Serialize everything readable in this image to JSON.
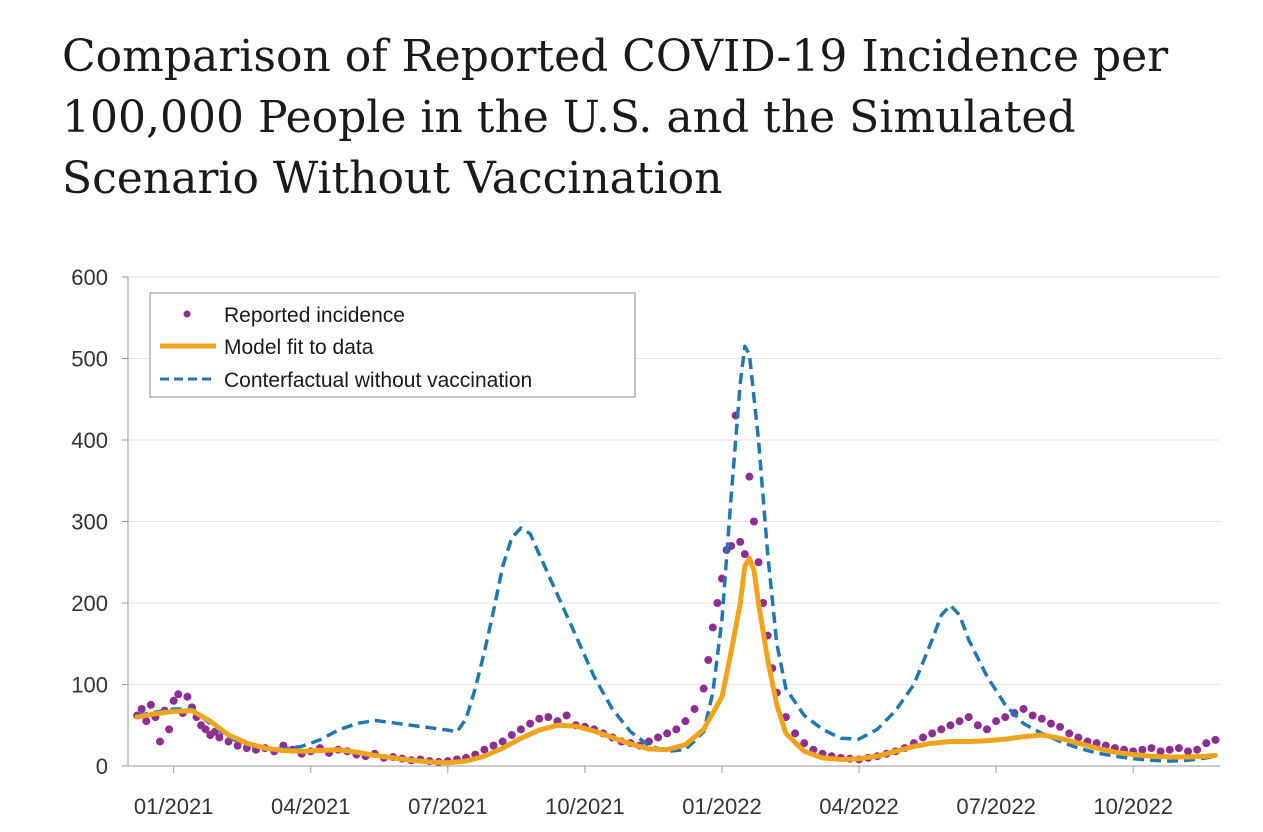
{
  "title_lines": [
    "Comparison of Reported COVID-19 Incidence per",
    "100,000 People in the U.S. and the Simulated",
    "Scenario Without Vaccination"
  ],
  "colors": {
    "reported": "#8e2e94",
    "model": "#f2a31c",
    "counterfactual": "#1f78b4",
    "grid": "#e6e6e6",
    "axis": "#999999"
  },
  "chart_data": {
    "type": "line",
    "title": "Comparison of Reported COVID-19 Incidence per 100,000 People in the U.S. and the Simulated Scenario Without Vaccination",
    "xlabel": "",
    "ylabel": "",
    "x_unit": "months since 01/2021",
    "xlim": [
      -1.0,
      22.9
    ],
    "ylim": [
      0,
      600
    ],
    "y_ticks": [
      0,
      100,
      200,
      300,
      400,
      500,
      600
    ],
    "x_ticks": [
      {
        "value": 0,
        "label": "01/2021"
      },
      {
        "value": 3,
        "label": "04/2021"
      },
      {
        "value": 6,
        "label": "07/2021"
      },
      {
        "value": 9,
        "label": "10/2021"
      },
      {
        "value": 12,
        "label": "01/2022"
      },
      {
        "value": 15,
        "label": "04/2022"
      },
      {
        "value": 18,
        "label": "07/2022"
      },
      {
        "value": 21,
        "label": "10/2022"
      }
    ],
    "grid": true,
    "legend_position": "top-left",
    "series": [
      {
        "name": "Reported incidence",
        "style": "dots",
        "points": [
          [
            -0.8,
            62
          ],
          [
            -0.7,
            70
          ],
          [
            -0.6,
            55
          ],
          [
            -0.5,
            75
          ],
          [
            -0.4,
            60
          ],
          [
            -0.3,
            30
          ],
          [
            -0.2,
            68
          ],
          [
            -0.1,
            45
          ],
          [
            0.0,
            80
          ],
          [
            0.1,
            88
          ],
          [
            0.2,
            65
          ],
          [
            0.3,
            85
          ],
          [
            0.4,
            72
          ],
          [
            0.5,
            60
          ],
          [
            0.6,
            50
          ],
          [
            0.7,
            45
          ],
          [
            0.8,
            38
          ],
          [
            0.9,
            42
          ],
          [
            1.0,
            35
          ],
          [
            1.2,
            30
          ],
          [
            1.4,
            25
          ],
          [
            1.6,
            22
          ],
          [
            1.8,
            20
          ],
          [
            2.0,
            22
          ],
          [
            2.2,
            18
          ],
          [
            2.4,
            25
          ],
          [
            2.6,
            20
          ],
          [
            2.8,
            15
          ],
          [
            3.0,
            18
          ],
          [
            3.2,
            22
          ],
          [
            3.4,
            16
          ],
          [
            3.6,
            20
          ],
          [
            3.8,
            18
          ],
          [
            4.0,
            14
          ],
          [
            4.2,
            12
          ],
          [
            4.4,
            15
          ],
          [
            4.6,
            10
          ],
          [
            4.8,
            11
          ],
          [
            5.0,
            9
          ],
          [
            5.2,
            7
          ],
          [
            5.4,
            8
          ],
          [
            5.6,
            6
          ],
          [
            5.8,
            5
          ],
          [
            6.0,
            6
          ],
          [
            6.2,
            8
          ],
          [
            6.4,
            10
          ],
          [
            6.6,
            14
          ],
          [
            6.8,
            20
          ],
          [
            7.0,
            25
          ],
          [
            7.2,
            30
          ],
          [
            7.4,
            38
          ],
          [
            7.6,
            45
          ],
          [
            7.8,
            52
          ],
          [
            8.0,
            58
          ],
          [
            8.2,
            60
          ],
          [
            8.4,
            55
          ],
          [
            8.6,
            62
          ],
          [
            8.8,
            50
          ],
          [
            9.0,
            48
          ],
          [
            9.2,
            45
          ],
          [
            9.4,
            40
          ],
          [
            9.6,
            35
          ],
          [
            9.8,
            30
          ],
          [
            10.0,
            28
          ],
          [
            10.2,
            25
          ],
          [
            10.4,
            30
          ],
          [
            10.6,
            35
          ],
          [
            10.8,
            40
          ],
          [
            11.0,
            45
          ],
          [
            11.2,
            55
          ],
          [
            11.4,
            70
          ],
          [
            11.6,
            95
          ],
          [
            11.7,
            130
          ],
          [
            11.8,
            170
          ],
          [
            11.9,
            200
          ],
          [
            12.0,
            230
          ],
          [
            12.1,
            265
          ],
          [
            12.2,
            270
          ],
          [
            12.3,
            430
          ],
          [
            12.4,
            275
          ],
          [
            12.5,
            260
          ],
          [
            12.6,
            355
          ],
          [
            12.7,
            300
          ],
          [
            12.8,
            250
          ],
          [
            12.9,
            200
          ],
          [
            13.0,
            160
          ],
          [
            13.1,
            120
          ],
          [
            13.2,
            90
          ],
          [
            13.4,
            60
          ],
          [
            13.6,
            40
          ],
          [
            13.8,
            28
          ],
          [
            14.0,
            20
          ],
          [
            14.2,
            15
          ],
          [
            14.4,
            12
          ],
          [
            14.6,
            10
          ],
          [
            14.8,
            9
          ],
          [
            15.0,
            8
          ],
          [
            15.2,
            10
          ],
          [
            15.4,
            12
          ],
          [
            15.6,
            15
          ],
          [
            15.8,
            18
          ],
          [
            16.0,
            22
          ],
          [
            16.2,
            28
          ],
          [
            16.4,
            35
          ],
          [
            16.6,
            40
          ],
          [
            16.8,
            45
          ],
          [
            17.0,
            50
          ],
          [
            17.2,
            55
          ],
          [
            17.4,
            60
          ],
          [
            17.6,
            50
          ],
          [
            17.8,
            45
          ],
          [
            18.0,
            55
          ],
          [
            18.2,
            60
          ],
          [
            18.4,
            65
          ],
          [
            18.6,
            70
          ],
          [
            18.8,
            62
          ],
          [
            19.0,
            58
          ],
          [
            19.2,
            52
          ],
          [
            19.4,
            48
          ],
          [
            19.6,
            40
          ],
          [
            19.8,
            35
          ],
          [
            20.0,
            30
          ],
          [
            20.2,
            28
          ],
          [
            20.4,
            25
          ],
          [
            20.6,
            22
          ],
          [
            20.8,
            20
          ],
          [
            21.0,
            18
          ],
          [
            21.2,
            20
          ],
          [
            21.4,
            22
          ],
          [
            21.6,
            18
          ],
          [
            21.8,
            20
          ],
          [
            22.0,
            22
          ],
          [
            22.2,
            18
          ],
          [
            22.4,
            20
          ],
          [
            22.6,
            28
          ],
          [
            22.8,
            32
          ]
        ]
      },
      {
        "name": "Model fit to data",
        "style": "solid",
        "points": [
          [
            -0.8,
            60
          ],
          [
            -0.4,
            64
          ],
          [
            0.0,
            67
          ],
          [
            0.4,
            68
          ],
          [
            0.8,
            55
          ],
          [
            1.2,
            38
          ],
          [
            1.6,
            28
          ],
          [
            2.0,
            22
          ],
          [
            2.4,
            19
          ],
          [
            2.8,
            18
          ],
          [
            3.2,
            19
          ],
          [
            3.6,
            20
          ],
          [
            4.0,
            17
          ],
          [
            4.4,
            13
          ],
          [
            4.8,
            10
          ],
          [
            5.2,
            7
          ],
          [
            5.6,
            5
          ],
          [
            6.0,
            4
          ],
          [
            6.4,
            6
          ],
          [
            6.8,
            12
          ],
          [
            7.2,
            22
          ],
          [
            7.6,
            34
          ],
          [
            8.0,
            44
          ],
          [
            8.4,
            50
          ],
          [
            8.8,
            49
          ],
          [
            9.2,
            43
          ],
          [
            9.6,
            35
          ],
          [
            10.0,
            27
          ],
          [
            10.4,
            21
          ],
          [
            10.8,
            20
          ],
          [
            11.2,
            26
          ],
          [
            11.6,
            45
          ],
          [
            12.0,
            85
          ],
          [
            12.2,
            140
          ],
          [
            12.4,
            200
          ],
          [
            12.5,
            245
          ],
          [
            12.6,
            255
          ],
          [
            12.7,
            240
          ],
          [
            12.8,
            200
          ],
          [
            13.0,
            130
          ],
          [
            13.2,
            75
          ],
          [
            13.4,
            40
          ],
          [
            13.8,
            18
          ],
          [
            14.2,
            10
          ],
          [
            14.6,
            8
          ],
          [
            15.0,
            9
          ],
          [
            15.4,
            12
          ],
          [
            15.8,
            18
          ],
          [
            16.2,
            24
          ],
          [
            16.6,
            28
          ],
          [
            17.0,
            30
          ],
          [
            17.4,
            30
          ],
          [
            17.8,
            31
          ],
          [
            18.2,
            33
          ],
          [
            18.6,
            36
          ],
          [
            19.0,
            38
          ],
          [
            19.4,
            34
          ],
          [
            19.8,
            28
          ],
          [
            20.2,
            22
          ],
          [
            20.6,
            17
          ],
          [
            21.0,
            14
          ],
          [
            21.4,
            12
          ],
          [
            21.8,
            11
          ],
          [
            22.2,
            11
          ],
          [
            22.6,
            12
          ],
          [
            22.8,
            13
          ]
        ]
      },
      {
        "name": "Conterfactual without vaccination",
        "style": "dashed",
        "points": [
          [
            -0.8,
            62
          ],
          [
            -0.4,
            66
          ],
          [
            0.0,
            70
          ],
          [
            0.4,
            70
          ],
          [
            0.8,
            52
          ],
          [
            1.2,
            35
          ],
          [
            1.6,
            26
          ],
          [
            2.0,
            22
          ],
          [
            2.4,
            21
          ],
          [
            2.8,
            24
          ],
          [
            3.2,
            32
          ],
          [
            3.6,
            44
          ],
          [
            4.0,
            52
          ],
          [
            4.4,
            56
          ],
          [
            4.8,
            53
          ],
          [
            5.2,
            50
          ],
          [
            5.6,
            47
          ],
          [
            6.0,
            44
          ],
          [
            6.2,
            42
          ],
          [
            6.4,
            58
          ],
          [
            6.6,
            95
          ],
          [
            6.8,
            140
          ],
          [
            7.0,
            190
          ],
          [
            7.2,
            245
          ],
          [
            7.4,
            280
          ],
          [
            7.6,
            292
          ],
          [
            7.8,
            285
          ],
          [
            8.0,
            260
          ],
          [
            8.4,
            210
          ],
          [
            8.8,
            160
          ],
          [
            9.2,
            110
          ],
          [
            9.6,
            70
          ],
          [
            10.0,
            42
          ],
          [
            10.4,
            25
          ],
          [
            10.8,
            18
          ],
          [
            11.2,
            20
          ],
          [
            11.6,
            42
          ],
          [
            11.8,
            90
          ],
          [
            12.0,
            180
          ],
          [
            12.2,
            330
          ],
          [
            12.4,
            470
          ],
          [
            12.5,
            515
          ],
          [
            12.6,
            505
          ],
          [
            12.8,
            400
          ],
          [
            13.0,
            260
          ],
          [
            13.2,
            150
          ],
          [
            13.4,
            95
          ],
          [
            13.8,
            62
          ],
          [
            14.2,
            45
          ],
          [
            14.6,
            34
          ],
          [
            15.0,
            33
          ],
          [
            15.4,
            45
          ],
          [
            15.8,
            68
          ],
          [
            16.2,
            100
          ],
          [
            16.6,
            155
          ],
          [
            16.8,
            185
          ],
          [
            17.0,
            197
          ],
          [
            17.2,
            185
          ],
          [
            17.4,
            155
          ],
          [
            17.8,
            110
          ],
          [
            18.2,
            75
          ],
          [
            18.6,
            52
          ],
          [
            19.0,
            40
          ],
          [
            19.4,
            30
          ],
          [
            19.8,
            22
          ],
          [
            20.2,
            16
          ],
          [
            20.6,
            12
          ],
          [
            21.0,
            9
          ],
          [
            21.4,
            7
          ],
          [
            21.8,
            6
          ],
          [
            22.2,
            7
          ],
          [
            22.6,
            10
          ],
          [
            22.8,
            12
          ]
        ]
      }
    ]
  }
}
